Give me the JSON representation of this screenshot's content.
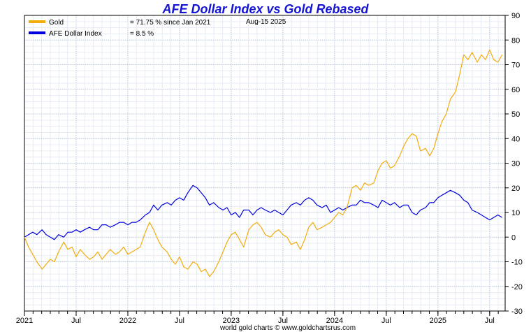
{
  "chart_data": {
    "type": "line",
    "title": "AFE Dollar Index vs Gold Rebased",
    "date_label": "Aug-15  2025",
    "footer": "world gold charts © www.goldchartsrus.com",
    "y_range": [
      -30,
      90
    ],
    "y_ticks": [
      "90",
      "80",
      "70",
      "60",
      "50",
      "40",
      "30",
      "20",
      "10",
      "0",
      "-10",
      "-20",
      "-30"
    ],
    "x_range": [
      2021.0,
      2025.65
    ],
    "x_ticks": [
      {
        "label": "2021",
        "x": 2021.0
      },
      {
        "label": "Jul",
        "x": 2021.5
      },
      {
        "label": "2022",
        "x": 2022.0
      },
      {
        "label": "Jul",
        "x": 2022.5
      },
      {
        "label": "2023",
        "x": 2023.0
      },
      {
        "label": "Jul",
        "x": 2023.5
      },
      {
        "label": "2024",
        "x": 2024.0
      },
      {
        "label": "Jul",
        "x": 2024.5
      },
      {
        "label": "2025",
        "x": 2025.0
      },
      {
        "label": "Jul",
        "x": 2025.5
      }
    ],
    "legend": [
      {
        "name": "Gold",
        "value": "= 71.75 % since Jan 2021",
        "color": "#f2ac0c"
      },
      {
        "name": "AFE Dollar Index",
        "value": "= 8.5 %",
        "color": "#0000dc"
      }
    ],
    "series": [
      {
        "name": "Gold",
        "color": "#f2ac0c",
        "x": [
          2021.0,
          2021.04,
          2021.08,
          2021.12,
          2021.17,
          2021.21,
          2021.25,
          2021.29,
          2021.33,
          2021.38,
          2021.42,
          2021.46,
          2021.5,
          2021.54,
          2021.58,
          2021.63,
          2021.67,
          2021.71,
          2021.75,
          2021.79,
          2021.83,
          2021.88,
          2021.92,
          2021.96,
          2022.0,
          2022.04,
          2022.08,
          2022.12,
          2022.17,
          2022.21,
          2022.25,
          2022.29,
          2022.33,
          2022.38,
          2022.42,
          2022.46,
          2022.5,
          2022.54,
          2022.58,
          2022.63,
          2022.67,
          2022.71,
          2022.75,
          2022.79,
          2022.83,
          2022.88,
          2022.92,
          2022.96,
          2023.0,
          2023.04,
          2023.08,
          2023.12,
          2023.17,
          2023.21,
          2023.25,
          2023.29,
          2023.33,
          2023.38,
          2023.42,
          2023.46,
          2023.5,
          2023.54,
          2023.58,
          2023.63,
          2023.67,
          2023.71,
          2023.75,
          2023.79,
          2023.83,
          2023.88,
          2023.92,
          2023.96,
          2024.0,
          2024.04,
          2024.08,
          2024.12,
          2024.17,
          2024.21,
          2024.25,
          2024.29,
          2024.33,
          2024.38,
          2024.42,
          2024.46,
          2024.5,
          2024.54,
          2024.58,
          2024.63,
          2024.67,
          2024.71,
          2024.75,
          2024.79,
          2024.83,
          2024.88,
          2024.92,
          2024.96,
          2025.0,
          2025.04,
          2025.08,
          2025.12,
          2025.17,
          2025.21,
          2025.25,
          2025.29,
          2025.33,
          2025.38,
          2025.42,
          2025.46,
          2025.5,
          2025.54,
          2025.58,
          2025.62
        ],
        "values": [
          0,
          -4,
          -7,
          -10,
          -13,
          -11,
          -9,
          -10,
          -6,
          -2,
          -5,
          -4,
          -8,
          -5,
          -7,
          -9,
          -8,
          -6,
          -9,
          -7,
          -5,
          -7,
          -6,
          -4,
          -7,
          -6,
          -5,
          -4,
          2,
          6,
          3,
          -1,
          -4,
          -6,
          -9,
          -11,
          -8,
          -12,
          -13,
          -10,
          -11,
          -14,
          -13,
          -16,
          -14,
          -10,
          -6,
          -2,
          1,
          2,
          -1,
          -4,
          3,
          5,
          6,
          4,
          1,
          0,
          2,
          3,
          1,
          0,
          -3,
          -2,
          -5,
          -1,
          4,
          6,
          3,
          4,
          5,
          6,
          8,
          10,
          9,
          12,
          20,
          21,
          19,
          22,
          21,
          22,
          27,
          30,
          31,
          28,
          29,
          33,
          37,
          40,
          42,
          41,
          35,
          36,
          33,
          36,
          42,
          47,
          50,
          56,
          59,
          66,
          74,
          72,
          75,
          71,
          74,
          72,
          76,
          72,
          71,
          74
        ]
      },
      {
        "name": "AFE Dollar Index",
        "color": "#0000dc",
        "x": [
          2021.0,
          2021.04,
          2021.08,
          2021.12,
          2021.17,
          2021.21,
          2021.25,
          2021.29,
          2021.33,
          2021.38,
          2021.42,
          2021.46,
          2021.5,
          2021.54,
          2021.58,
          2021.63,
          2021.67,
          2021.71,
          2021.75,
          2021.79,
          2021.83,
          2021.88,
          2021.92,
          2021.96,
          2022.0,
          2022.04,
          2022.08,
          2022.12,
          2022.17,
          2022.21,
          2022.25,
          2022.29,
          2022.33,
          2022.38,
          2022.42,
          2022.46,
          2022.5,
          2022.54,
          2022.58,
          2022.63,
          2022.67,
          2022.71,
          2022.75,
          2022.79,
          2022.83,
          2022.88,
          2022.92,
          2022.96,
          2023.0,
          2023.04,
          2023.08,
          2023.12,
          2023.17,
          2023.21,
          2023.25,
          2023.29,
          2023.33,
          2023.38,
          2023.42,
          2023.46,
          2023.5,
          2023.54,
          2023.58,
          2023.63,
          2023.67,
          2023.71,
          2023.75,
          2023.79,
          2023.83,
          2023.88,
          2023.92,
          2023.96,
          2024.0,
          2024.04,
          2024.08,
          2024.12,
          2024.17,
          2024.21,
          2024.25,
          2024.29,
          2024.33,
          2024.38,
          2024.42,
          2024.46,
          2024.5,
          2024.54,
          2024.58,
          2024.63,
          2024.67,
          2024.71,
          2024.75,
          2024.79,
          2024.83,
          2024.88,
          2024.92,
          2024.96,
          2025.0,
          2025.04,
          2025.08,
          2025.12,
          2025.17,
          2025.21,
          2025.25,
          2025.29,
          2025.33,
          2025.38,
          2025.42,
          2025.46,
          2025.5,
          2025.54,
          2025.58,
          2025.62
        ],
        "values": [
          0,
          1,
          2,
          1,
          3,
          1,
          0,
          -1,
          1,
          0,
          2,
          2,
          3,
          2,
          3,
          4,
          3,
          3,
          5,
          5,
          4,
          5,
          6,
          6,
          5,
          6,
          6,
          7,
          9,
          10,
          13,
          11,
          13,
          14,
          13,
          15,
          16,
          15,
          18,
          21,
          20,
          18,
          16,
          13,
          14,
          12,
          11,
          12,
          9,
          10,
          8,
          11,
          11,
          9,
          11,
          12,
          11,
          10,
          11,
          10,
          9,
          11,
          13,
          14,
          13,
          15,
          16,
          15,
          13,
          12,
          13,
          10,
          11,
          12,
          11,
          12,
          13,
          13,
          15,
          14,
          14,
          13,
          12,
          15,
          14,
          13,
          14,
          12,
          13,
          13,
          10,
          9,
          11,
          12,
          14,
          14,
          16,
          17,
          18,
          19,
          18,
          17,
          15,
          14,
          11,
          10,
          9,
          8,
          7,
          8,
          9,
          8
        ]
      }
    ]
  }
}
